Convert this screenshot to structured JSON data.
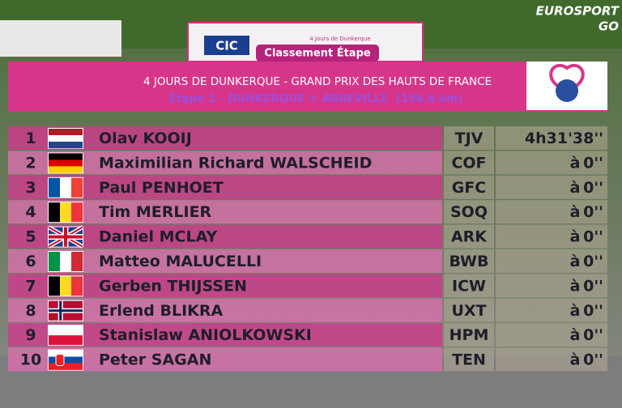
{
  "broadcaster_logo": "EUROSPORT",
  "broadcaster_sub": "GO",
  "sponsor_logo": "CIC",
  "event_logo_text": "4 Jours de Dunkerque",
  "banner_tab": "Classement Étape",
  "header": {
    "title": "4 JOURS DE DUNKERQUE - GRAND PRIX DES HAUTS DE FRANCE",
    "subtitle": "Étape 1 - DUNKERQUE > ABBEVILLE  (196,6 km)"
  },
  "table": {
    "rows": [
      {
        "rank": 1,
        "name": "Olav KOOIJ",
        "team": "TJV",
        "time": "4h31'38''"
      },
      {
        "rank": 2,
        "name": "Maximilian Richard WALSCHEID",
        "team": "COF",
        "prefix": "à",
        "time": "0''"
      },
      {
        "rank": 3,
        "name": "Paul PENHOET",
        "team": "GFC",
        "prefix": "à",
        "time": "0''"
      },
      {
        "rank": 4,
        "name": "Tim MERLIER",
        "team": "SOQ",
        "prefix": "à",
        "time": "0''"
      },
      {
        "rank": 5,
        "name": "Daniel MCLAY",
        "team": "ARK",
        "prefix": "à",
        "time": "0''"
      },
      {
        "rank": 6,
        "name": "Matteo MALUCELLI",
        "team": "BWB",
        "prefix": "à",
        "time": "0''"
      },
      {
        "rank": 7,
        "name": "Gerben THIJSSEN",
        "team": "ICW",
        "prefix": "à",
        "time": "0''"
      },
      {
        "rank": 8,
        "name": "Erlend BLIKRA",
        "team": "UXT",
        "prefix": "à",
        "time": "0''"
      },
      {
        "rank": 9,
        "name": "Stanislaw ANIOLKOWSKI",
        "team": "HPM",
        "prefix": "à",
        "time": "0''"
      },
      {
        "rank": 10,
        "name": "Peter SAGAN",
        "team": "TEN",
        "prefix": "à",
        "time": "0''"
      }
    ]
  }
}
